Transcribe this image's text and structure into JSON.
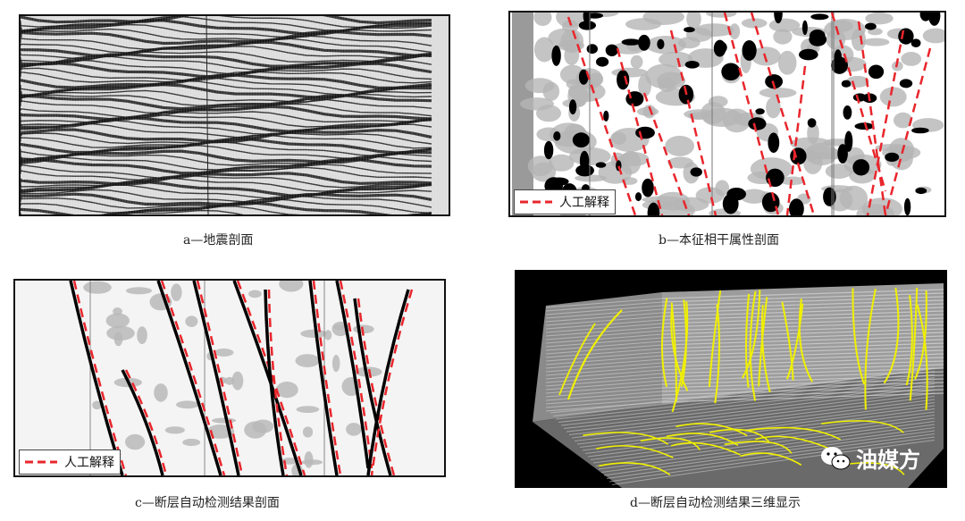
{
  "panels": {
    "a": {
      "caption": "a—地震剖面"
    },
    "b": {
      "caption": "b—本征相干属性剖面",
      "legend": "人工解释"
    },
    "c": {
      "caption": "c—断层自动检测结果剖面",
      "legend": "人工解释"
    },
    "d": {
      "caption": "d—断层自动检测结果三维显示"
    }
  },
  "watermark": {
    "text": "油媒方",
    "icon": "wechat-icon"
  },
  "colors": {
    "interpretation": "#e8262c",
    "detection": "#000000",
    "fault3d": "#f0f000"
  }
}
